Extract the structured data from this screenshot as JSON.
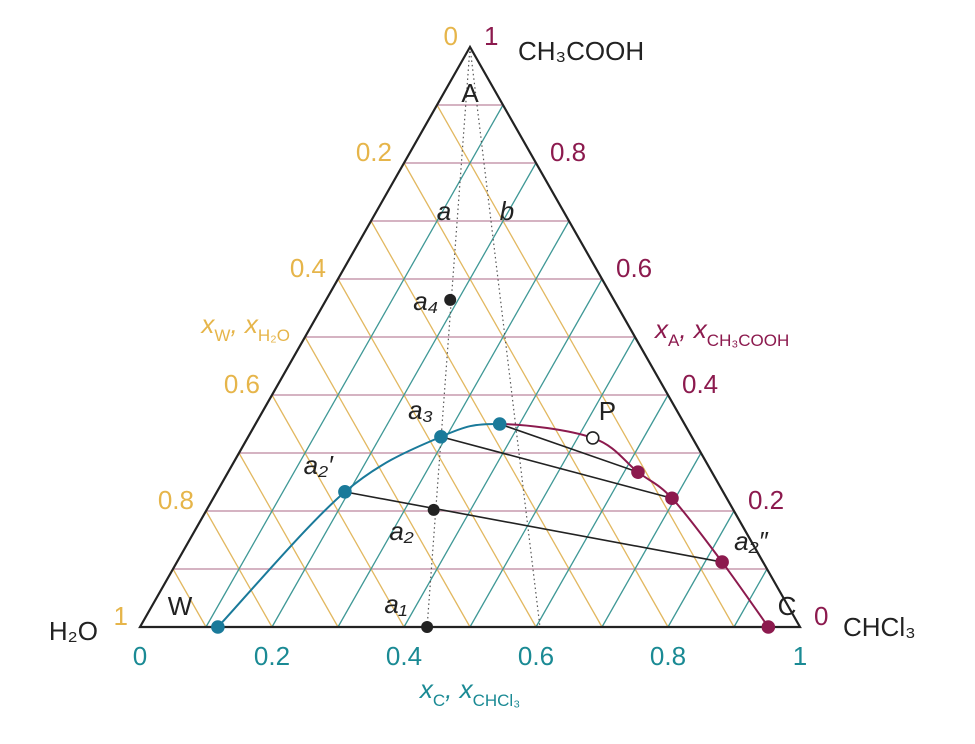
{
  "chart_data": {
    "type": "ternary",
    "vertices": {
      "top": "CH₃COOH",
      "left": "H₂O",
      "right": "CHCl₃"
    },
    "corner_labels": {
      "top": "A",
      "left": "W",
      "right": "C"
    },
    "line_labels": [
      "a",
      "b"
    ],
    "axes": {
      "bottom": {
        "color": "#1a8a94",
        "grid_color": "#3f9896",
        "title": [
          {
            "text": "x"
          },
          {
            "text": "C",
            "sub": true
          },
          {
            "text": ", x"
          },
          {
            "text": "CHCl₃",
            "sub": true
          }
        ],
        "ticks": [
          0,
          0.2,
          0.4,
          0.6,
          0.8,
          1
        ],
        "grid": [
          0.1,
          0.2,
          0.3,
          0.4,
          0.5,
          0.6,
          0.7,
          0.8,
          0.9
        ]
      },
      "left": {
        "color": "#e6b54a",
        "grid_color": "#e2b860",
        "title": [
          {
            "text": "x"
          },
          {
            "text": "W",
            "sub": true
          },
          {
            "text": ", x"
          },
          {
            "text": "H₂O",
            "sub": true
          }
        ],
        "ticks": [
          0,
          0.2,
          0.4,
          0.6,
          0.8,
          1
        ],
        "grid": [
          0.1,
          0.2,
          0.3,
          0.4,
          0.5,
          0.6,
          0.7,
          0.8,
          0.9
        ]
      },
      "right": {
        "color": "#8c1a4e",
        "grid_color": "#c79aae",
        "title": [
          {
            "text": "x"
          },
          {
            "text": "A",
            "sub": true
          },
          {
            "text": ", x"
          },
          {
            "text": "CH₃COOH",
            "sub": true
          }
        ],
        "ticks": [
          0,
          0.2,
          0.4,
          0.6,
          0.8,
          1
        ],
        "grid": [
          0.1,
          0.2,
          0.3,
          0.4,
          0.5,
          0.6,
          0.7,
          0.8,
          0.9
        ]
      }
    },
    "dotted_lines_xC": [
      0.435,
      0.606
    ],
    "binodal": {
      "xC": [
        0.118,
        0.194,
        0.292,
        0.37,
        0.523,
        0.621,
        0.695,
        0.826,
        0.952
      ],
      "xA": [
        0,
        0.233,
        0.328,
        0.35,
        0.326,
        0.267,
        0.222,
        0.112,
        0
      ],
      "labels": [
        null,
        "a₂′",
        "a₃",
        null,
        "P",
        null,
        null,
        "a₂″",
        null
      ],
      "colors": [
        "#1a7a9a",
        "#1a7a9a",
        "#1a7a9a",
        "#1a7a9a",
        "#8c1a4e",
        "#8c1a4e",
        "#8c1a4e",
        "#8c1a4e",
        "#8c1a4e"
      ],
      "open": [
        false,
        false,
        false,
        false,
        true,
        false,
        false,
        false,
        false
      ]
    },
    "points": {
      "xC": [
        0.188,
        0.344,
        0.435
      ],
      "xA": [
        0.564,
        0.202,
        0
      ],
      "labels": [
        "a₄",
        "a₂",
        "a₁"
      ],
      "color": "#222222"
    }
  }
}
